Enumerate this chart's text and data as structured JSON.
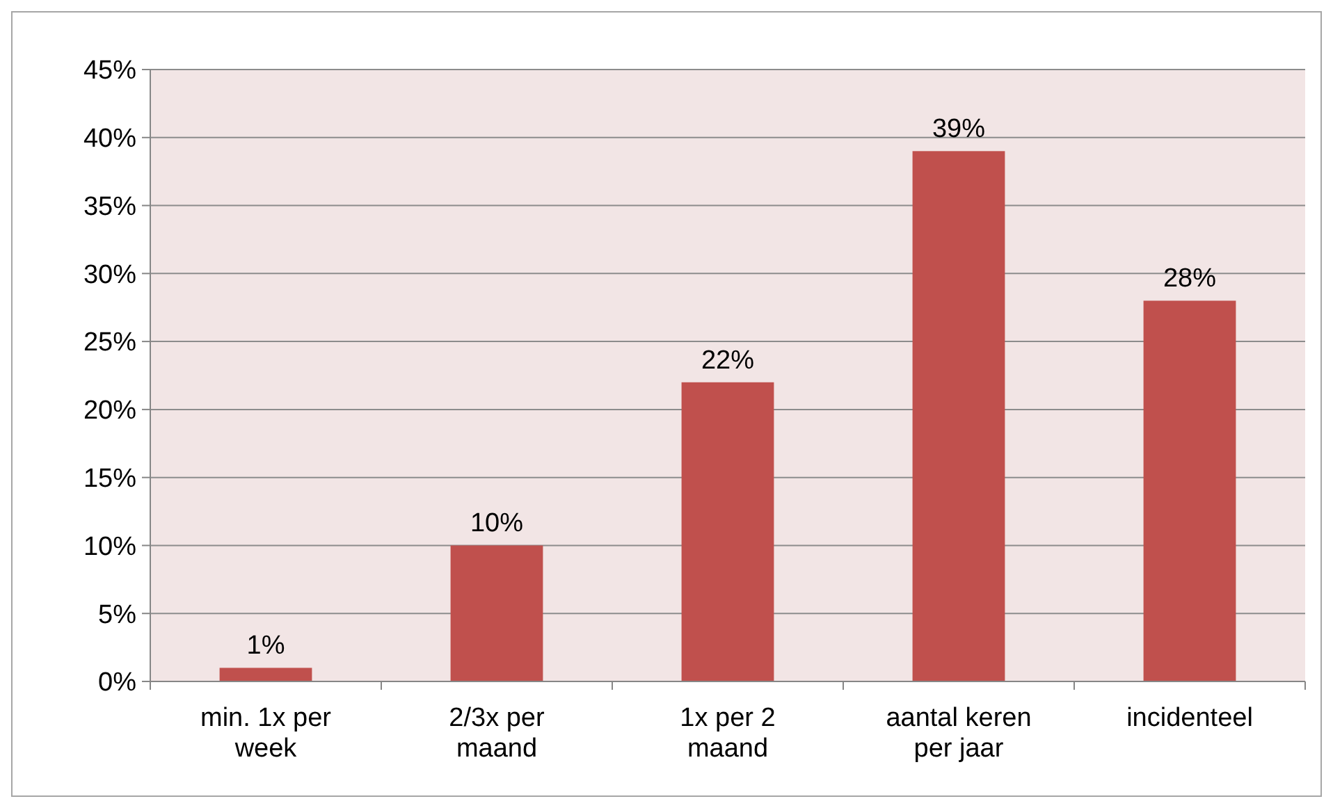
{
  "chart_data": {
    "type": "bar",
    "categories": [
      "min. 1x per week",
      "2/3x per maand",
      "1x per 2 maand",
      "aantal keren per jaar",
      "incidenteel"
    ],
    "values": [
      1,
      10,
      22,
      39,
      28
    ],
    "value_labels": [
      "1%",
      "10%",
      "22%",
      "39%",
      "28%"
    ],
    "color": "#c0504d",
    "ylim": [
      0,
      45
    ],
    "yticks": [
      {
        "value": 0,
        "label": "0%"
      },
      {
        "value": 5,
        "label": "5%"
      },
      {
        "value": 10,
        "label": "10%"
      },
      {
        "value": 15,
        "label": "15%"
      },
      {
        "value": 20,
        "label": "20%"
      },
      {
        "value": 25,
        "label": "25%"
      },
      {
        "value": 30,
        "label": "30%"
      },
      {
        "value": 35,
        "label": "35%"
      },
      {
        "value": 40,
        "label": "40%"
      },
      {
        "value": 45,
        "label": "45%"
      }
    ],
    "grid": "y"
  }
}
